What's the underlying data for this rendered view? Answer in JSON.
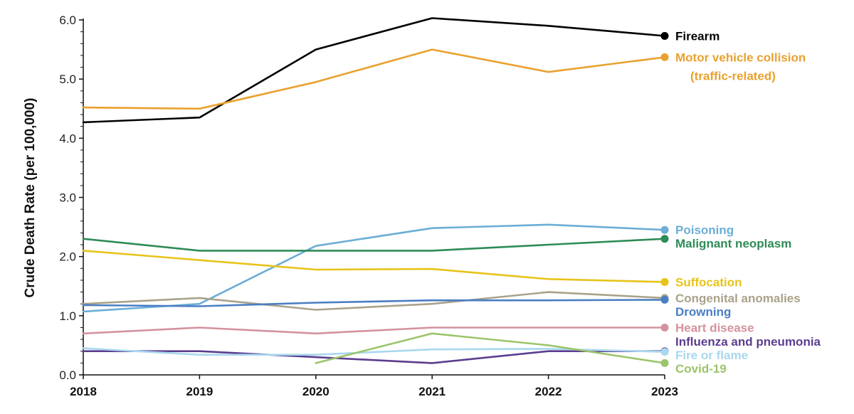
{
  "chart_data": {
    "type": "line",
    "title": "",
    "xlabel": "",
    "ylabel": "Crude Death Rate (per 100,000)",
    "x": [
      2018,
      2019,
      2020,
      2021,
      2022,
      2023
    ],
    "x_tick_labels": [
      "2018",
      "2019",
      "2020",
      "2021",
      "2022",
      "2023"
    ],
    "ylim": [
      0,
      6
    ],
    "y_ticks": [
      0,
      1,
      2,
      3,
      4,
      5,
      6
    ],
    "y_tick_labels": [
      "0.0",
      "1.0",
      "2.0",
      "3.0",
      "4.0",
      "5.0",
      "6.0"
    ],
    "grid": false,
    "legend": "inline labels at right end of each line",
    "series": [
      {
        "name": "Firearm",
        "label_lines": [
          "Firearm"
        ],
        "color": "#000000",
        "values": [
          4.27,
          4.35,
          5.5,
          6.03,
          5.9,
          5.73
        ]
      },
      {
        "name": "Motor vehicle collision (traffic-related)",
        "label_lines": [
          "Motor vehicle collision",
          "(traffic-related)"
        ],
        "color": "#E9A12E",
        "values": [
          4.52,
          4.5,
          4.95,
          5.5,
          5.12,
          5.37
        ]
      },
      {
        "name": "Poisoning",
        "label_lines": [
          "Poisoning"
        ],
        "color": "#6BAED6",
        "values": [
          1.07,
          1.2,
          2.18,
          2.48,
          2.54,
          2.45
        ]
      },
      {
        "name": "Malignant neoplasm",
        "label_lines": [
          "Malignant neoplasm"
        ],
        "color": "#2E8B57",
        "values": [
          2.3,
          2.1,
          2.1,
          2.1,
          2.2,
          2.3
        ]
      },
      {
        "name": "Suffocation",
        "label_lines": [
          "Suffocation"
        ],
        "color": "#E8C31A",
        "values": [
          2.1,
          1.94,
          1.78,
          1.79,
          1.62,
          1.57
        ]
      },
      {
        "name": "Congenital anomalies",
        "label_lines": [
          "Congenital anomalies"
        ],
        "color": "#A9A28A",
        "values": [
          1.2,
          1.3,
          1.1,
          1.2,
          1.4,
          1.3
        ]
      },
      {
        "name": "Drowning",
        "label_lines": [
          "Drowning"
        ],
        "color": "#4A7EC2",
        "values": [
          1.18,
          1.16,
          1.22,
          1.26,
          1.26,
          1.27
        ]
      },
      {
        "name": "Heart disease",
        "label_lines": [
          "Heart disease"
        ],
        "color": "#D4919E",
        "values": [
          0.7,
          0.8,
          0.7,
          0.8,
          0.8,
          0.8
        ]
      },
      {
        "name": "Influenza and pneumonia",
        "label_lines": [
          "Influenza and pneumonia"
        ],
        "color": "#5C3D8F",
        "values": [
          0.4,
          0.4,
          0.3,
          0.2,
          0.4,
          0.4
        ]
      },
      {
        "name": "Fire or flame",
        "label_lines": [
          "Fire or flame"
        ],
        "color": "#A9D7EE",
        "values": [
          0.45,
          0.34,
          0.34,
          0.43,
          0.44,
          0.39
        ]
      },
      {
        "name": "Covid-19",
        "label_lines": [
          "Covid-19"
        ],
        "color": "#9BC46A",
        "values": [
          null,
          null,
          0.2,
          0.7,
          0.5,
          0.2
        ]
      }
    ]
  }
}
